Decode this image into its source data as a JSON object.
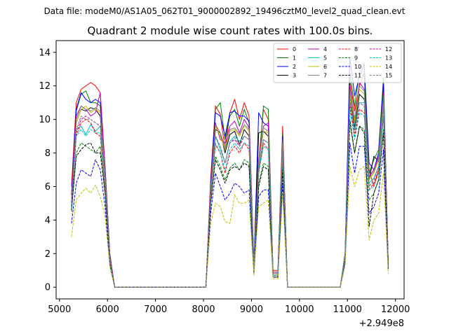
{
  "suptitle": "Data file: modeM0/AS1A05_062T01_9000002892_19496cztM0_level2_quad_clean.evt",
  "chart_data": {
    "type": "line",
    "title": "Quadrant 2 module wise count rates with 100.0s bins.",
    "xlabel": "",
    "ylabel": "",
    "offset_label": "+2.949e8",
    "xlim": [
      4930,
      12180
    ],
    "ylim": [
      -0.7,
      14.7
    ],
    "xticks": [
      5000,
      6000,
      7000,
      8000,
      9000,
      10000,
      11000,
      12000
    ],
    "yticks": [
      0,
      2,
      4,
      6,
      8,
      10,
      12,
      14
    ],
    "grid": false,
    "legend_position": "top-right",
    "legend_ncol": 4,
    "x": [
      5250,
      5350,
      5450,
      5550,
      5650,
      5750,
      5850,
      5950,
      6050,
      6150,
      6250,
      6350,
      6450,
      6550,
      6650,
      6750,
      6850,
      6950,
      7050,
      7150,
      7250,
      7350,
      7450,
      7550,
      7650,
      7750,
      7850,
      7950,
      8050,
      8150,
      8250,
      8350,
      8450,
      8550,
      8650,
      8750,
      8850,
      8950,
      9050,
      9150,
      9250,
      9350,
      9450,
      9550,
      9650,
      9750,
      9850,
      9950,
      10050,
      10150,
      10250,
      10350,
      10450,
      10550,
      10650,
      10750,
      10850,
      10950,
      11050,
      11150,
      11250,
      11350,
      11450,
      11550,
      11650,
      11750,
      11850
    ],
    "series": [
      {
        "name": "0",
        "color": "#ff0000",
        "dashed": false,
        "values": [
          6.0,
          11.0,
          11.8,
          12.0,
          12.2,
          12.0,
          11.6,
          7.2,
          2.0,
          0,
          0,
          0,
          0,
          0,
          0,
          0,
          0,
          0,
          0,
          0,
          0,
          0,
          0,
          0,
          0,
          0,
          0,
          0,
          0,
          6.5,
          10.8,
          10.3,
          8.2,
          10.4,
          11.2,
          10.0,
          11.0,
          10.2,
          1.5,
          7.5,
          10.6,
          10.0,
          1.0,
          1.0,
          9.6,
          0,
          0,
          0,
          0,
          0,
          0,
          0,
          0,
          0,
          0,
          0,
          0,
          2.0,
          12.3,
          10.5,
          12.0,
          12.8,
          7.0,
          6.0,
          7.0,
          12.0,
          1.5
        ]
      },
      {
        "name": "1",
        "color": "#008000",
        "dashed": false,
        "values": [
          5.0,
          10.5,
          11.5,
          11.7,
          11.0,
          11.0,
          10.8,
          7.0,
          1.8,
          0,
          0,
          0,
          0,
          0,
          0,
          0,
          0,
          0,
          0,
          0,
          0,
          0,
          0,
          0,
          0,
          0,
          0,
          0,
          0,
          6.0,
          10.6,
          11.0,
          8.8,
          10.2,
          10.6,
          9.6,
          10.6,
          9.8,
          1.2,
          7.0,
          10.8,
          10.6,
          0.9,
          0.9,
          9.2,
          0,
          0,
          0,
          0,
          0,
          0,
          0,
          0,
          0,
          0,
          0,
          0,
          2.0,
          12.8,
          10.8,
          12.8,
          12.6,
          6.8,
          7.6,
          8.2,
          12.5,
          1.4
        ]
      },
      {
        "name": "2",
        "color": "#0000ff",
        "dashed": false,
        "values": [
          5.5,
          10.6,
          11.6,
          11.2,
          11.0,
          11.2,
          11.0,
          7.1,
          1.9,
          0,
          0,
          0,
          0,
          0,
          0,
          0,
          0,
          0,
          0,
          0,
          0,
          0,
          0,
          0,
          0,
          0,
          0,
          0,
          0,
          6.2,
          10.4,
          10.2,
          9.0,
          10.4,
          10.5,
          10.2,
          10.2,
          9.9,
          1.3,
          10.4,
          9.8,
          9.6,
          0.8,
          0.8,
          9.0,
          0,
          0,
          0,
          0,
          0,
          0,
          0,
          0,
          0,
          0,
          0,
          0,
          2.0,
          13.7,
          11.4,
          12.6,
          13.3,
          7.4,
          7.0,
          8.0,
          12.1,
          1.4
        ]
      },
      {
        "name": "3",
        "color": "#000000",
        "dashed": false,
        "values": [
          5.0,
          9.8,
          10.6,
          10.5,
          10.7,
          10.6,
          10.2,
          6.6,
          1.7,
          0,
          0,
          0,
          0,
          0,
          0,
          0,
          0,
          0,
          0,
          0,
          0,
          0,
          0,
          0,
          0,
          0,
          0,
          0,
          0,
          5.8,
          9.4,
          9.2,
          8.0,
          9.1,
          9.3,
          8.5,
          9.4,
          9.0,
          1.1,
          9.2,
          9.3,
          9.0,
          0.8,
          0.8,
          8.6,
          0,
          0,
          0,
          0,
          0,
          0,
          0,
          0,
          0,
          0,
          0,
          0,
          1.9,
          11.6,
          9.5,
          11.5,
          11.2,
          6.4,
          7.8,
          7.5,
          11.0,
          1.3
        ]
      },
      {
        "name": "4",
        "color": "#bf00bf",
        "dashed": false,
        "values": [
          5.2,
          10.2,
          10.8,
          10.6,
          10.2,
          10.4,
          11.6,
          6.9,
          1.8,
          0,
          0,
          0,
          0,
          0,
          0,
          0,
          0,
          0,
          0,
          0,
          0,
          0,
          0,
          0,
          0,
          0,
          0,
          0,
          0,
          5.9,
          9.8,
          8.8,
          8.6,
          9.6,
          9.9,
          9.2,
          10.0,
          9.5,
          1.2,
          7.6,
          9.6,
          9.8,
          0.9,
          0.9,
          8.8,
          0,
          0,
          0,
          0,
          0,
          0,
          0,
          0,
          0,
          0,
          0,
          0,
          1.9,
          12.0,
          10.0,
          12.2,
          11.8,
          6.6,
          7.0,
          7.8,
          11.6,
          1.3
        ]
      },
      {
        "name": "5",
        "color": "#00bfbf",
        "dashed": false,
        "values": [
          4.8,
          9.4,
          9.6,
          9.1,
          9.7,
          9.3,
          9.6,
          6.3,
          1.6,
          0,
          0,
          0,
          0,
          0,
          0,
          0,
          0,
          0,
          0,
          0,
          0,
          0,
          0,
          0,
          0,
          0,
          0,
          0,
          0,
          5.6,
          9.0,
          8.2,
          7.4,
          8.7,
          9.0,
          8.7,
          9.0,
          8.8,
          1.1,
          7.2,
          8.8,
          8.6,
          0.8,
          0.8,
          8.2,
          0,
          0,
          0,
          0,
          0,
          0,
          0,
          0,
          0,
          0,
          0,
          0,
          1.8,
          11.0,
          9.4,
          11.0,
          11.0,
          6.2,
          6.5,
          7.2,
          10.8,
          1.2
        ]
      },
      {
        "name": "6",
        "color": "#bfbf00",
        "dashed": false,
        "values": [
          5.0,
          9.8,
          10.6,
          10.8,
          10.4,
          10.6,
          10.4,
          6.7,
          1.7,
          0,
          0,
          0,
          0,
          0,
          0,
          0,
          0,
          0,
          0,
          0,
          0,
          0,
          0,
          0,
          0,
          0,
          0,
          0,
          0,
          5.8,
          9.6,
          9.0,
          8.2,
          9.3,
          9.4,
          9.0,
          9.6,
          9.3,
          1.2,
          7.4,
          9.3,
          9.2,
          0.8,
          0.8,
          8.6,
          0,
          0,
          0,
          0,
          0,
          0,
          0,
          0,
          0,
          0,
          0,
          0,
          1.9,
          11.6,
          9.8,
          11.8,
          11.5,
          6.4,
          6.8,
          7.6,
          11.2,
          1.3
        ]
      },
      {
        "name": "7",
        "color": "#808080",
        "dashed": false,
        "values": [
          5.1,
          10.0,
          10.8,
          10.6,
          10.5,
          10.7,
          10.5,
          6.8,
          1.8,
          0,
          0,
          0,
          0,
          0,
          0,
          0,
          0,
          0,
          0,
          0,
          0,
          0,
          0,
          0,
          0,
          0,
          0,
          0,
          0,
          5.9,
          9.7,
          9.2,
          8.3,
          9.4,
          9.5,
          9.1,
          9.7,
          9.4,
          1.2,
          7.5,
          9.5,
          9.3,
          0.8,
          0.8,
          8.7,
          0,
          0,
          0,
          0,
          0,
          0,
          0,
          0,
          0,
          0,
          0,
          0,
          1.9,
          11.8,
          10.0,
          12.0,
          11.7,
          6.5,
          6.9,
          7.7,
          11.4,
          1.3
        ]
      },
      {
        "name": "8",
        "color": "#ff0000",
        "dashed": true,
        "values": [
          4.8,
          9.0,
          9.8,
          10.0,
          9.8,
          9.2,
          9.0,
          6.0,
          1.6,
          0,
          0,
          0,
          0,
          0,
          0,
          0,
          0,
          0,
          0,
          0,
          0,
          0,
          0,
          0,
          0,
          0,
          0,
          0,
          0,
          5.5,
          8.5,
          8.0,
          6.8,
          8.0,
          8.4,
          8.0,
          8.6,
          8.2,
          1.0,
          6.8,
          8.6,
          8.2,
          0.7,
          0.7,
          7.8,
          0,
          0,
          0,
          0,
          0,
          0,
          0,
          0,
          0,
          0,
          0,
          0,
          1.8,
          10.8,
          9.0,
          10.6,
          10.4,
          5.8,
          6.2,
          7.0,
          10.2,
          1.2
        ]
      },
      {
        "name": "9",
        "color": "#008000",
        "dashed": true,
        "values": [
          4.5,
          8.0,
          8.6,
          8.4,
          8.2,
          8.0,
          8.4,
          5.6,
          1.5,
          0,
          0,
          0,
          0,
          0,
          0,
          0,
          0,
          0,
          0,
          0,
          0,
          0,
          0,
          0,
          0,
          0,
          0,
          0,
          0,
          5.0,
          7.8,
          7.2,
          6.4,
          7.1,
          7.4,
          7.0,
          7.6,
          7.4,
          0.9,
          6.2,
          7.4,
          7.2,
          0.7,
          0.7,
          7.2,
          0,
          0,
          0,
          0,
          0,
          0,
          0,
          0,
          0,
          0,
          0,
          0,
          1.7,
          9.8,
          8.0,
          9.6,
          9.4,
          5.2,
          5.6,
          6.4,
          9.4,
          1.1
        ]
      },
      {
        "name": "10",
        "color": "#0000ff",
        "dashed": true,
        "values": [
          3.8,
          6.2,
          7.0,
          6.8,
          6.6,
          7.6,
          7.0,
          4.8,
          1.3,
          0,
          0,
          0,
          0,
          0,
          0,
          0,
          0,
          0,
          0,
          0,
          0,
          0,
          0,
          0,
          0,
          0,
          0,
          0,
          0,
          4.4,
          6.8,
          6.0,
          5.2,
          5.6,
          6.2,
          6.0,
          5.6,
          5.8,
          0.8,
          5.4,
          5.8,
          5.8,
          0.6,
          0.6,
          6.2,
          0,
          0,
          0,
          0,
          0,
          0,
          0,
          0,
          0,
          0,
          0,
          0,
          1.5,
          8.6,
          6.8,
          8.4,
          8.4,
          4.4,
          4.8,
          5.6,
          8.2,
          1.0
        ]
      },
      {
        "name": "11",
        "color": "#000000",
        "dashed": true,
        "values": [
          4.6,
          7.8,
          8.2,
          8.5,
          8.6,
          8.0,
          8.0,
          5.6,
          1.5,
          0,
          0,
          0,
          0,
          0,
          0,
          0,
          0,
          0,
          0,
          0,
          0,
          0,
          0,
          0,
          0,
          0,
          0,
          0,
          0,
          5.0,
          7.6,
          7.0,
          6.2,
          7.0,
          7.2,
          7.0,
          7.4,
          7.2,
          0.9,
          6.0,
          7.2,
          7.0,
          0.6,
          0.6,
          7.0,
          0,
          0,
          0,
          0,
          0,
          0,
          0,
          0,
          0,
          0,
          0,
          0,
          1.6,
          10.0,
          8.0,
          9.6,
          9.2,
          3.6,
          5.6,
          6.4,
          9.2,
          1.1
        ]
      },
      {
        "name": "12",
        "color": "#bf00bf",
        "dashed": true,
        "values": [
          5.0,
          9.2,
          10.0,
          10.2,
          10.0,
          9.8,
          9.6,
          6.4,
          1.7,
          0,
          0,
          0,
          0,
          0,
          0,
          0,
          0,
          0,
          0,
          0,
          0,
          0,
          0,
          0,
          0,
          0,
          0,
          0,
          0,
          5.6,
          9.0,
          8.4,
          7.4,
          8.6,
          8.8,
          8.4,
          9.0,
          8.8,
          1.1,
          7.0,
          8.8,
          8.6,
          0.8,
          0.8,
          8.2,
          0,
          0,
          0,
          0,
          0,
          0,
          0,
          0,
          0,
          0,
          0,
          0,
          1.8,
          11.2,
          9.2,
          11.0,
          10.8,
          6.0,
          6.4,
          7.2,
          10.6,
          1.2
        ]
      },
      {
        "name": "13",
        "color": "#00bfbf",
        "dashed": true,
        "values": [
          4.7,
          9.0,
          9.4,
          9.0,
          9.4,
          9.2,
          9.2,
          6.1,
          1.6,
          0,
          0,
          0,
          0,
          0,
          0,
          0,
          0,
          0,
          0,
          0,
          0,
          0,
          0,
          0,
          0,
          0,
          0,
          0,
          0,
          5.4,
          8.6,
          8.0,
          7.0,
          8.2,
          8.6,
          8.2,
          8.6,
          8.4,
          1.0,
          6.8,
          8.4,
          8.2,
          0.7,
          0.7,
          8.0,
          0,
          0,
          0,
          0,
          0,
          0,
          0,
          0,
          0,
          0,
          0,
          0,
          1.8,
          10.6,
          8.8,
          10.4,
          10.2,
          5.8,
          6.0,
          6.8,
          10.2,
          1.2
        ]
      },
      {
        "name": "14",
        "color": "#bfbf00",
        "dashed": true,
        "values": [
          3.0,
          5.2,
          5.6,
          5.9,
          5.6,
          6.1,
          5.4,
          4.2,
          1.2,
          0,
          0,
          0,
          0,
          0,
          0,
          0,
          0,
          0,
          0,
          0,
          0,
          0,
          0,
          0,
          0,
          0,
          0,
          0,
          0,
          3.8,
          5.0,
          4.8,
          3.9,
          3.8,
          5.5,
          5.0,
          5.0,
          5.2,
          0.7,
          4.8,
          5.0,
          5.2,
          0.5,
          0.5,
          5.6,
          0,
          0,
          0,
          0,
          0,
          0,
          0,
          0,
          0,
          0,
          0,
          0,
          1.3,
          7.2,
          6.0,
          7.0,
          7.2,
          2.8,
          4.0,
          4.4,
          6.8,
          0.8
        ]
      },
      {
        "name": "15",
        "color": "#808080",
        "dashed": true,
        "values": [
          4.9,
          9.4,
          10.2,
          10.0,
          10.0,
          9.8,
          9.6,
          6.3,
          1.7,
          0,
          0,
          0,
          0,
          0,
          0,
          0,
          0,
          0,
          0,
          0,
          0,
          0,
          0,
          0,
          0,
          0,
          0,
          0,
          0,
          5.6,
          9.0,
          8.4,
          7.4,
          8.6,
          8.9,
          8.5,
          9.0,
          8.8,
          1.1,
          7.0,
          8.8,
          8.6,
          0.8,
          0.8,
          8.2,
          0,
          0,
          0,
          0,
          0,
          0,
          0,
          0,
          0,
          0,
          0,
          0,
          1.8,
          11.2,
          9.2,
          11.0,
          10.8,
          6.0,
          6.4,
          7.2,
          10.6,
          1.2
        ]
      }
    ]
  }
}
